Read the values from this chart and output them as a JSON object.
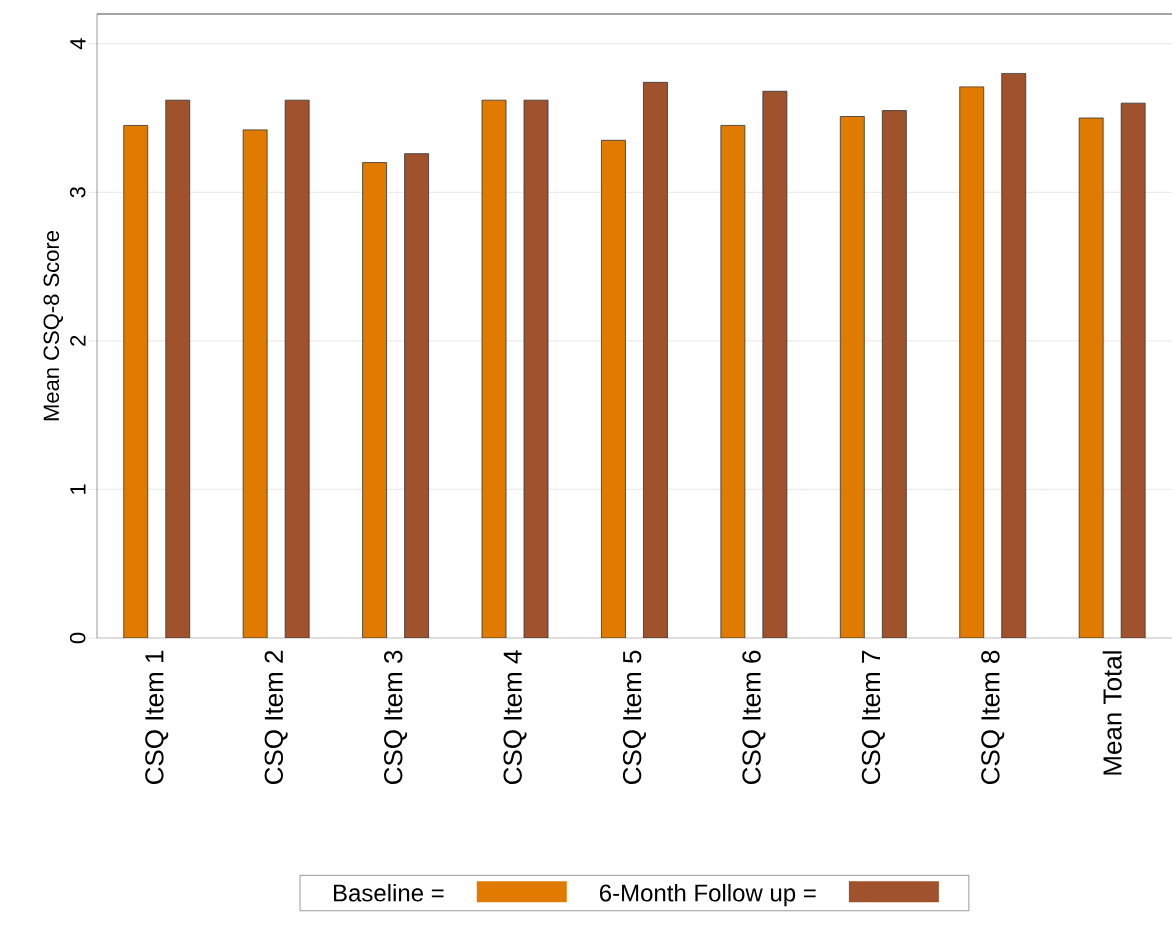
{
  "chart_data": {
    "type": "bar",
    "ylabel": "Mean CSQ-8 Score",
    "categories": [
      "CSQ Item 1",
      "CSQ Item 2",
      "CSQ Item 3",
      "CSQ Item 4",
      "CSQ Item 5",
      "CSQ Item 6",
      "CSQ Item 7",
      "CSQ Item 8",
      "Mean Total"
    ],
    "series": [
      {
        "name": "Baseline =",
        "color": "#e07b00",
        "values": [
          3.45,
          3.42,
          3.2,
          3.62,
          3.35,
          3.45,
          3.51,
          3.71,
          3.5
        ]
      },
      {
        "name": "6-Month Follow up =",
        "color": "#a0522d",
        "values": [
          3.62,
          3.62,
          3.26,
          3.62,
          3.74,
          3.68,
          3.55,
          3.8,
          3.6
        ]
      }
    ],
    "ylim": [
      0,
      4.2
    ],
    "yticks": [
      0,
      1,
      2,
      3,
      4
    ],
    "grid": "y",
    "legend": "bottom"
  }
}
